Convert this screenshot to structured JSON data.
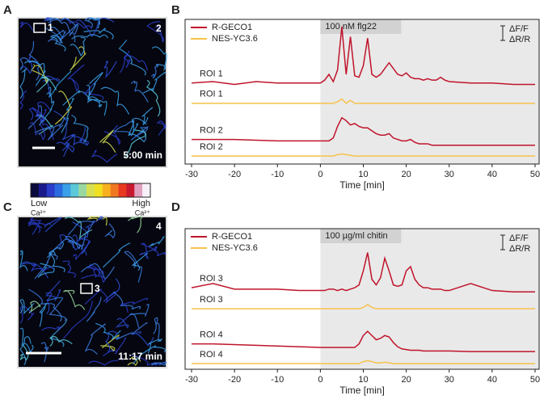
{
  "figure": {
    "panel_letters": [
      "A",
      "B",
      "C",
      "D"
    ],
    "image_A": {
      "roi_labels": [
        "1",
        "2"
      ],
      "timestamp": "5:00 min"
    },
    "image_C": {
      "roi_labels": [
        "3",
        "4"
      ],
      "timestamp": "11:17 min"
    },
    "colorbar": {
      "low": "Low",
      "high": "High",
      "unit": "Ca²⁺",
      "colors": [
        "#0a0a3c",
        "#1a1a8c",
        "#2a3cc8",
        "#2a6ce0",
        "#3aa0e8",
        "#5cc8d8",
        "#9ad8a0",
        "#d8e050",
        "#f0e020",
        "#f8b020",
        "#f07820",
        "#e83820",
        "#c81830",
        "#e0a0c0",
        "#f8f0f8"
      ]
    }
  },
  "chart_data": [
    {
      "type": "line",
      "stimulus": "100 nM flg22",
      "stimulus_from": 0,
      "scale_labels": [
        "ΔF/F",
        "ΔR/R"
      ],
      "x_label": "Time [min]",
      "x": [
        -30,
        -25,
        -20,
        -15,
        -10,
        -5,
        0,
        1,
        2,
        3,
        4,
        5,
        6,
        7,
        8,
        9,
        10,
        11,
        12,
        13,
        14,
        15,
        16,
        17,
        18,
        19,
        20,
        21,
        22,
        23,
        24,
        25,
        26,
        27,
        28,
        29,
        30,
        35,
        40,
        45,
        50
      ],
      "xlim": [
        -30,
        50
      ],
      "xticks": [
        -30,
        -20,
        -10,
        0,
        10,
        20,
        30,
        40,
        50
      ],
      "ylim": [
        0,
        100
      ],
      "series": [
        {
          "name": "R-GECO1",
          "label": "ROI 1",
          "color": "#c0142b",
          "values": [
            56,
            57,
            55,
            57,
            56,
            56,
            56,
            58,
            62,
            57,
            65,
            95,
            62,
            88,
            61,
            60,
            68,
            87,
            62,
            60,
            62,
            66,
            70,
            66,
            62,
            61,
            63,
            60,
            59,
            59,
            58,
            59,
            58,
            58,
            60,
            58,
            57,
            56,
            56,
            55,
            55
          ]
        },
        {
          "name": "NES-YC3.6",
          "label": "ROI 1",
          "color": "#f6c24a",
          "values": [
            42,
            42,
            42,
            42,
            42,
            42,
            42,
            42,
            42,
            42,
            43,
            45,
            42,
            44,
            42,
            42,
            42,
            42,
            42,
            42,
            42,
            42,
            42,
            42,
            42,
            42,
            42,
            42,
            42,
            42,
            42,
            42,
            42,
            42,
            42,
            42,
            42,
            42,
            42,
            42,
            42
          ]
        },
        {
          "name": "R-GECO1",
          "label": "ROI 2",
          "color": "#c0142b",
          "values": [
            17,
            17,
            17,
            16.5,
            16,
            16,
            16,
            16,
            16,
            18,
            26,
            32,
            30,
            27,
            28,
            26,
            25,
            25,
            23,
            21,
            20,
            20,
            21,
            18,
            17,
            16,
            16,
            17,
            15,
            14,
            14,
            14,
            13,
            13,
            13,
            13,
            13,
            13,
            13,
            13,
            13
          ]
        },
        {
          "name": "NES-YC3.6",
          "label": "ROI 2",
          "color": "#f6c24a",
          "values": [
            5.5,
            5.5,
            5.5,
            5.5,
            5.5,
            5.5,
            5.5,
            5.5,
            5.5,
            5.5,
            6.5,
            7,
            6.5,
            6,
            5.5,
            5.5,
            5.5,
            5.5,
            5.5,
            5.5,
            5.5,
            5.5,
            5.5,
            5.5,
            5.5,
            5.5,
            5.5,
            5.5,
            5.5,
            5.5,
            5.5,
            5.5,
            5.5,
            5.5,
            5.5,
            5.5,
            5.5,
            5.5,
            5.5,
            5.5,
            5.5
          ]
        }
      ]
    },
    {
      "type": "line",
      "stimulus": "100 µg/ml chitin",
      "stimulus_from": 0,
      "scale_labels": [
        "ΔF/F",
        "ΔR/R"
      ],
      "x_label": "Time [min]",
      "x": [
        -30,
        -25,
        -20,
        -15,
        -10,
        -5,
        0,
        1,
        2,
        3,
        4,
        5,
        6,
        7,
        8,
        9,
        10,
        11,
        12,
        13,
        14,
        15,
        16,
        17,
        18,
        19,
        20,
        21,
        22,
        23,
        24,
        25,
        26,
        27,
        28,
        29,
        30,
        35,
        40,
        45,
        50
      ],
      "xlim": [
        -30,
        50
      ],
      "xticks": [
        -30,
        -20,
        -10,
        0,
        10,
        20,
        30,
        40,
        50
      ],
      "ylim": [
        0,
        100
      ],
      "series": [
        {
          "name": "R-GECO1",
          "label": "ROI 3",
          "color": "#c0142b",
          "values": [
            58,
            61,
            57,
            57,
            57,
            56,
            56,
            56,
            57,
            57,
            56,
            57,
            56,
            57,
            58,
            60,
            70,
            83,
            64,
            60,
            65,
            79,
            70,
            60,
            59,
            60,
            70,
            73,
            64,
            60,
            58,
            58,
            57,
            57,
            57,
            56,
            56,
            61,
            56,
            55,
            55
          ]
        },
        {
          "name": "NES-YC3.6",
          "label": "ROI 3",
          "color": "#f6c24a",
          "values": [
            43,
            43,
            43,
            43,
            43,
            43,
            43,
            43,
            43,
            43,
            43,
            43,
            43,
            43,
            43,
            43,
            44,
            46,
            44,
            43,
            43,
            43,
            43,
            43,
            43,
            43,
            43,
            43,
            43,
            43,
            43,
            43,
            43,
            43,
            43,
            43,
            43,
            43,
            43,
            43,
            43
          ]
        },
        {
          "name": "R-GECO1",
          "label": "ROI 4",
          "color": "#c0142b",
          "values": [
            18,
            18,
            17.5,
            17,
            16.5,
            16,
            15.5,
            15.5,
            15.5,
            15.5,
            15.5,
            15.5,
            15.5,
            15.5,
            15.5,
            18,
            24,
            27,
            24,
            21,
            22,
            24,
            23,
            19,
            16,
            14.5,
            14,
            13.5,
            13.5,
            13.5,
            13,
            13,
            13,
            13,
            13,
            13,
            13,
            12.6,
            12.6,
            12.6,
            12.6
          ]
        },
        {
          "name": "NES-YC3.6",
          "label": "ROI 4",
          "color": "#f6c24a",
          "values": [
            4,
            4,
            4,
            4,
            4,
            4,
            4,
            4,
            4,
            4,
            4,
            4,
            4,
            4,
            4,
            4,
            5.5,
            6,
            5.5,
            4.5,
            4.5,
            5,
            4.5,
            4,
            4,
            4,
            4,
            4,
            4,
            4,
            4,
            4,
            4,
            4,
            4,
            4,
            4,
            4,
            4,
            4,
            4
          ]
        }
      ]
    }
  ]
}
